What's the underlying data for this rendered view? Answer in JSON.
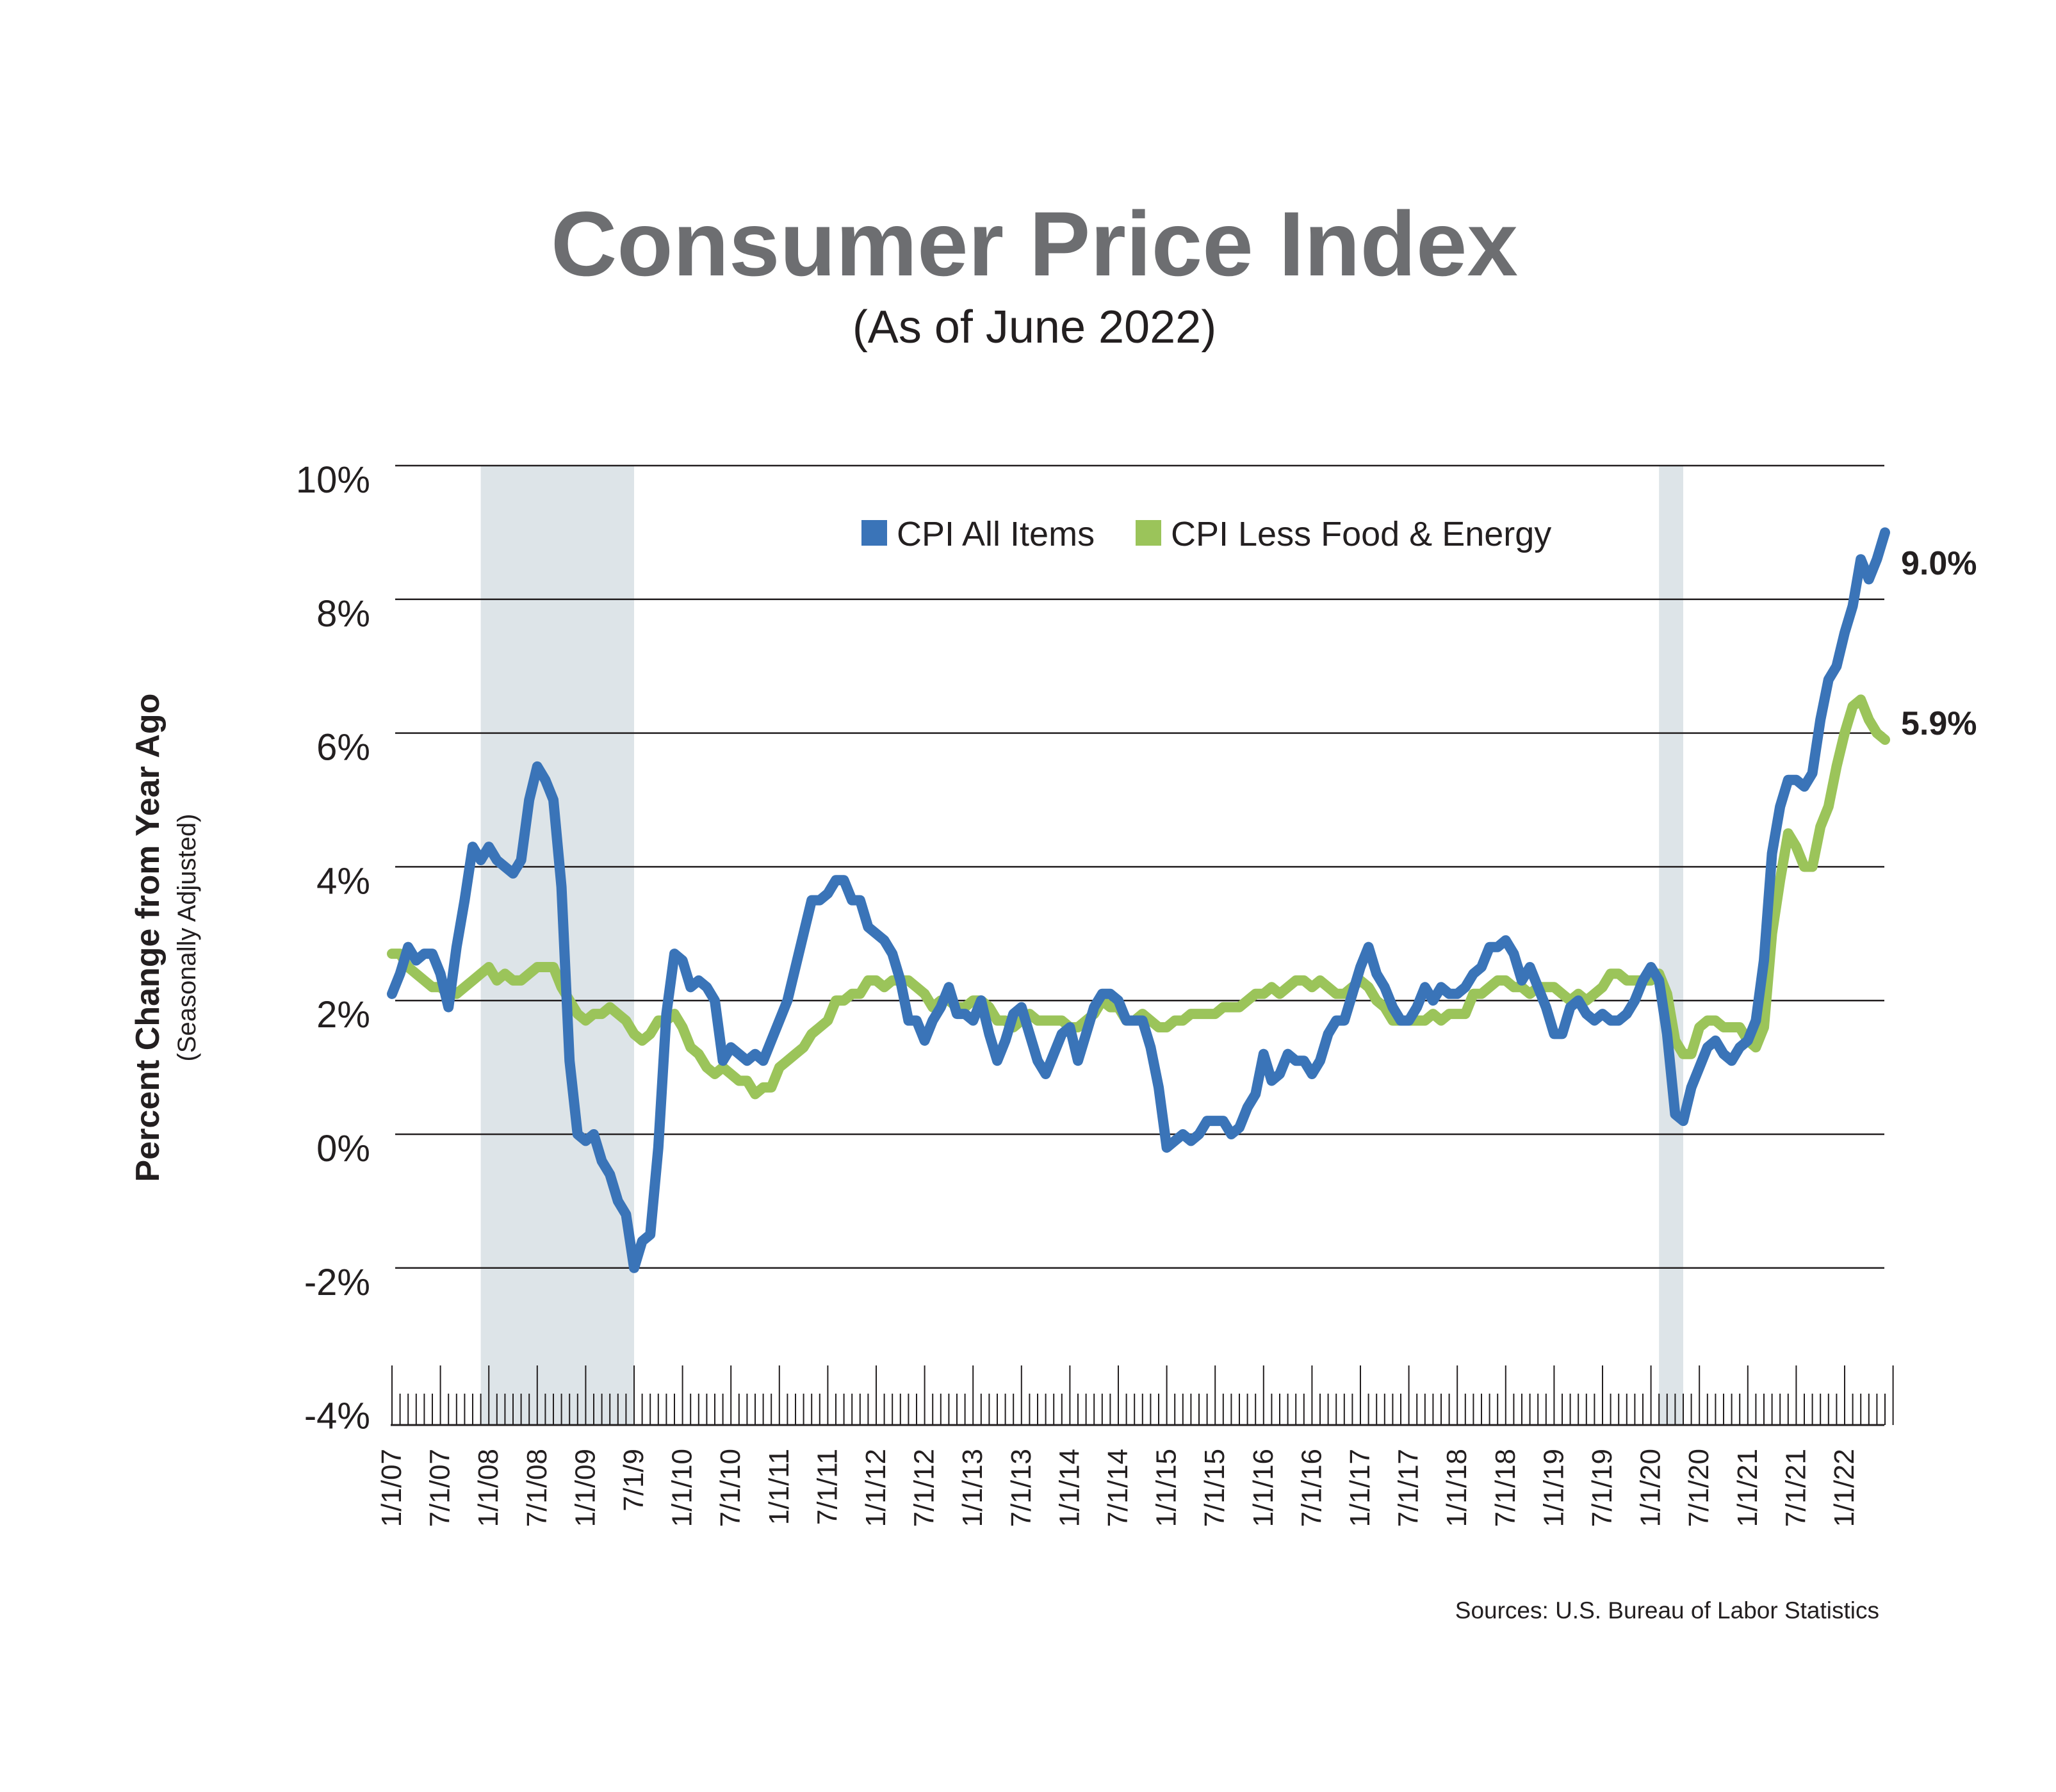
{
  "title": "Consumer Price Index",
  "subtitle": "(As of June 2022)",
  "source": "Sources: U.S. Bureau of Labor Statistics",
  "colors": {
    "cpi_all": "#3a74b8",
    "cpi_core": "#9bc45a",
    "recession": "#dde4e8",
    "title": "#6d6e71"
  },
  "chart_data": {
    "type": "line",
    "ylabel": "Percent Change from Year Ago",
    "ylabel_sub": "(Seasonally Adjusted)",
    "ylim": [
      -4,
      10
    ],
    "y_ticks": [
      "10%",
      "8%",
      "6%",
      "4%",
      "2%",
      "0%",
      "-2%",
      "-4%"
    ],
    "y_tick_values": [
      10,
      8,
      6,
      4,
      2,
      0,
      -2,
      -4
    ],
    "grid": "horizontal",
    "legend_position": "top-center",
    "x_start": "2007-01",
    "x_end": "2022-06",
    "x_frequency": "monthly",
    "x_tick_labels": [
      "1/1/07",
      "7/1/07",
      "1/1/08",
      "7/1/08",
      "1/1/09",
      "7/1/9",
      "1/1/10",
      "7/1/10",
      "1/1/11",
      "7/1/11",
      "1/1/12",
      "7/1/12",
      "1/1/13",
      "7/1/13",
      "1/1/14",
      "7/1/14",
      "1/1/15",
      "7/1/15",
      "1/1/16",
      "7/1/16",
      "1/1/17",
      "7/1/17",
      "1/1/18",
      "7/1/18",
      "1/1/19",
      "7/1/19",
      "1/1/20",
      "7/1/20",
      "1/1/21",
      "7/1/21",
      "1/1/22"
    ],
    "shaded_periods": [
      [
        "2007-12",
        "2009-06"
      ],
      [
        "2020-02",
        "2020-04"
      ]
    ],
    "series": [
      {
        "name": "CPI All Items",
        "end_label": "9.0%",
        "values": [
          2.1,
          2.4,
          2.8,
          2.6,
          2.7,
          2.7,
          2.4,
          1.9,
          2.8,
          3.5,
          4.3,
          4.1,
          4.3,
          4.1,
          4.0,
          3.9,
          4.1,
          5.0,
          5.5,
          5.3,
          5.0,
          3.7,
          1.1,
          0.0,
          -0.1,
          0.0,
          -0.4,
          -0.6,
          -1.0,
          -1.2,
          -2.0,
          -1.6,
          -1.5,
          -0.2,
          1.8,
          2.7,
          2.6,
          2.2,
          2.3,
          2.2,
          2.0,
          1.1,
          1.3,
          1.2,
          1.1,
          1.2,
          1.1,
          1.4,
          1.7,
          2.0,
          2.5,
          3.0,
          3.5,
          3.5,
          3.6,
          3.8,
          3.8,
          3.5,
          3.5,
          3.1,
          3.0,
          2.9,
          2.7,
          2.3,
          1.7,
          1.7,
          1.4,
          1.7,
          1.9,
          2.2,
          1.8,
          1.8,
          1.7,
          2.0,
          1.5,
          1.1,
          1.4,
          1.8,
          1.9,
          1.5,
          1.1,
          0.9,
          1.2,
          1.5,
          1.6,
          1.1,
          1.5,
          1.9,
          2.1,
          2.1,
          2.0,
          1.7,
          1.7,
          1.7,
          1.3,
          0.7,
          -0.2,
          -0.1,
          0.0,
          -0.1,
          0.0,
          0.2,
          0.2,
          0.2,
          0.0,
          0.1,
          0.4,
          0.6,
          1.2,
          0.8,
          0.9,
          1.2,
          1.1,
          1.1,
          0.9,
          1.1,
          1.5,
          1.7,
          1.7,
          2.1,
          2.5,
          2.8,
          2.4,
          2.2,
          1.9,
          1.7,
          1.7,
          1.9,
          2.2,
          2.0,
          2.2,
          2.1,
          2.1,
          2.2,
          2.4,
          2.5,
          2.8,
          2.8,
          2.9,
          2.7,
          2.3,
          2.5,
          2.2,
          1.9,
          1.5,
          1.5,
          1.9,
          2.0,
          1.8,
          1.7,
          1.8,
          1.7,
          1.7,
          1.8,
          2.0,
          2.3,
          2.5,
          2.3,
          1.5,
          0.3,
          0.2,
          0.7,
          1.0,
          1.3,
          1.4,
          1.2,
          1.1,
          1.3,
          1.4,
          1.7,
          2.6,
          4.2,
          4.9,
          5.3,
          5.3,
          5.2,
          5.4,
          6.2,
          6.8,
          7.0,
          7.5,
          7.9,
          8.6,
          8.3,
          8.6,
          9.0
        ]
      },
      {
        "name": "CPI Less Food & Energy",
        "end_label": "5.9%",
        "values": [
          2.7,
          2.7,
          2.5,
          2.4,
          2.3,
          2.2,
          2.2,
          2.1,
          2.1,
          2.2,
          2.3,
          2.4,
          2.5,
          2.3,
          2.4,
          2.3,
          2.3,
          2.4,
          2.5,
          2.5,
          2.5,
          2.2,
          2.0,
          1.8,
          1.7,
          1.8,
          1.8,
          1.9,
          1.8,
          1.7,
          1.5,
          1.4,
          1.5,
          1.7,
          1.7,
          1.8,
          1.6,
          1.3,
          1.2,
          1.0,
          0.9,
          1.0,
          0.9,
          0.8,
          0.8,
          0.6,
          0.7,
          0.7,
          1.0,
          1.1,
          1.2,
          1.3,
          1.5,
          1.6,
          1.7,
          2.0,
          2.0,
          2.1,
          2.1,
          2.3,
          2.3,
          2.2,
          2.3,
          2.3,
          2.3,
          2.2,
          2.1,
          1.9,
          2.0,
          2.0,
          1.9,
          1.9,
          2.0,
          2.0,
          1.9,
          1.7,
          1.7,
          1.6,
          1.7,
          1.8,
          1.7,
          1.7,
          1.7,
          1.7,
          1.6,
          1.6,
          1.7,
          1.8,
          2.0,
          1.9,
          1.9,
          1.7,
          1.7,
          1.8,
          1.7,
          1.6,
          1.6,
          1.7,
          1.7,
          1.8,
          1.8,
          1.8,
          1.8,
          1.9,
          1.9,
          1.9,
          2.0,
          2.1,
          2.1,
          2.2,
          2.1,
          2.2,
          2.3,
          2.3,
          2.2,
          2.3,
          2.2,
          2.1,
          2.1,
          2.2,
          2.3,
          2.2,
          2.0,
          1.9,
          1.7,
          1.7,
          1.7,
          1.7,
          1.7,
          1.8,
          1.7,
          1.8,
          1.8,
          1.8,
          2.1,
          2.1,
          2.2,
          2.3,
          2.3,
          2.2,
          2.2,
          2.1,
          2.2,
          2.2,
          2.2,
          2.1,
          2.0,
          2.1,
          2.0,
          2.1,
          2.2,
          2.4,
          2.4,
          2.3,
          2.3,
          2.3,
          2.3,
          2.4,
          2.1,
          1.4,
          1.2,
          1.2,
          1.6,
          1.7,
          1.7,
          1.6,
          1.6,
          1.6,
          1.4,
          1.3,
          1.6,
          3.0,
          3.8,
          4.5,
          4.3,
          4.0,
          4.0,
          4.6,
          4.9,
          5.5,
          6.0,
          6.4,
          6.5,
          6.2,
          6.0,
          5.9
        ]
      }
    ]
  }
}
